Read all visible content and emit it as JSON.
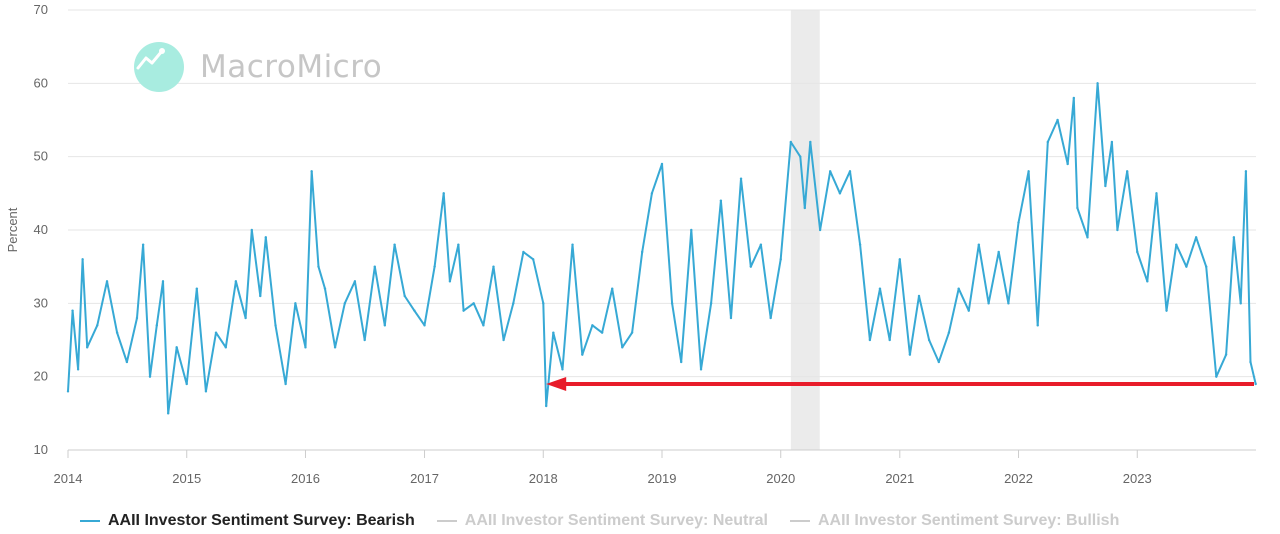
{
  "watermark": {
    "brand": "MacroMicro"
  },
  "colors": {
    "bearish": "#37a9d5",
    "inactive": "#cccccc",
    "arrow": "#e81c2a",
    "recession_band": "#ebebeb",
    "grid": "#e6e6e6"
  },
  "legend": [
    {
      "name": "AAII Investor Sentiment Survey: Bearish",
      "active": true
    },
    {
      "name": "AAII Investor Sentiment Survey: Neutral",
      "active": false
    },
    {
      "name": "AAII Investor Sentiment Survey: Bullish",
      "active": false
    }
  ],
  "chart_data": {
    "type": "line",
    "title": "",
    "ylabel": "Percent",
    "xlabel": "",
    "ylim": [
      10,
      70
    ],
    "yticks": [
      10,
      20,
      30,
      40,
      50,
      60,
      70
    ],
    "xlim": [
      "2014-01-01",
      "2024-01-01"
    ],
    "xticks": [
      "2014",
      "2015",
      "2016",
      "2017",
      "2018",
      "2019",
      "2020",
      "2021",
      "2022",
      "2023"
    ],
    "grid": "horizontal",
    "legend_position": "bottom",
    "shaded_period": {
      "start": "2020-02-01",
      "end": "2020-04-30"
    },
    "annotation": {
      "type": "arrow",
      "from": "2023-12-31",
      "to": "2018-01-10",
      "y": 19
    },
    "series": [
      {
        "name": "AAII Investor Sentiment Survey: Bearish",
        "x": [
          "2014-01-01",
          "2014-01-15",
          "2014-02-01",
          "2014-02-15",
          "2014-03-01",
          "2014-04-01",
          "2014-05-01",
          "2014-06-01",
          "2014-07-01",
          "2014-08-01",
          "2014-08-20",
          "2014-09-10",
          "2014-10-01",
          "2014-10-20",
          "2014-11-05",
          "2014-12-01",
          "2015-01-01",
          "2015-02-01",
          "2015-03-01",
          "2015-04-01",
          "2015-05-01",
          "2015-06-01",
          "2015-07-01",
          "2015-07-20",
          "2015-08-15",
          "2015-09-01",
          "2015-10-01",
          "2015-11-01",
          "2015-12-01",
          "2016-01-01",
          "2016-01-20",
          "2016-02-10",
          "2016-03-01",
          "2016-04-01",
          "2016-05-01",
          "2016-06-01",
          "2016-07-01",
          "2016-08-01",
          "2016-09-01",
          "2016-10-01",
          "2016-11-01",
          "2016-12-01",
          "2017-01-01",
          "2017-02-01",
          "2017-03-01",
          "2017-03-20",
          "2017-04-15",
          "2017-05-01",
          "2017-06-01",
          "2017-07-01",
          "2017-08-01",
          "2017-09-01",
          "2017-10-01",
          "2017-11-01",
          "2017-12-01",
          "2018-01-01",
          "2018-01-10",
          "2018-02-01",
          "2018-03-01",
          "2018-04-01",
          "2018-05-01",
          "2018-06-01",
          "2018-07-01",
          "2018-08-01",
          "2018-09-01",
          "2018-10-01",
          "2018-11-01",
          "2018-12-01",
          "2019-01-01",
          "2019-02-01",
          "2019-03-01",
          "2019-04-01",
          "2019-05-01",
          "2019-06-01",
          "2019-07-01",
          "2019-08-01",
          "2019-09-01",
          "2019-10-01",
          "2019-11-01",
          "2019-12-01",
          "2020-01-01",
          "2020-02-01",
          "2020-03-01",
          "2020-03-15",
          "2020-04-01",
          "2020-05-01",
          "2020-06-01",
          "2020-07-01",
          "2020-08-01",
          "2020-09-01",
          "2020-10-01",
          "2020-11-01",
          "2020-12-01",
          "2021-01-01",
          "2021-02-01",
          "2021-03-01",
          "2021-04-01",
          "2021-05-01",
          "2021-06-01",
          "2021-07-01",
          "2021-08-01",
          "2021-09-01",
          "2021-10-01",
          "2021-11-01",
          "2021-12-01",
          "2022-01-01",
          "2022-02-01",
          "2022-03-01",
          "2022-04-01",
          "2022-05-01",
          "2022-06-01",
          "2022-06-20",
          "2022-07-01",
          "2022-08-01",
          "2022-09-01",
          "2022-09-25",
          "2022-10-15",
          "2022-11-01",
          "2022-12-01",
          "2023-01-01",
          "2023-02-01",
          "2023-03-01",
          "2023-04-01",
          "2023-05-01",
          "2023-06-01",
          "2023-07-01",
          "2023-08-01",
          "2023-09-01",
          "2023-10-01",
          "2023-10-25",
          "2023-11-15",
          "2023-12-01",
          "2023-12-15",
          "2023-12-31"
        ],
        "values": [
          18,
          29,
          21,
          36,
          24,
          27,
          33,
          26,
          22,
          28,
          38,
          20,
          27,
          33,
          15,
          24,
          19,
          32,
          18,
          26,
          24,
          33,
          28,
          40,
          31,
          39,
          27,
          19,
          30,
          24,
          48,
          35,
          32,
          24,
          30,
          33,
          25,
          35,
          27,
          38,
          31,
          29,
          27,
          35,
          45,
          33,
          38,
          29,
          30,
          27,
          35,
          25,
          30,
          37,
          36,
          30,
          16,
          26,
          21,
          38,
          23,
          27,
          26,
          32,
          24,
          26,
          37,
          45,
          49,
          30,
          22,
          40,
          21,
          30,
          44,
          28,
          47,
          35,
          38,
          28,
          36,
          52,
          50,
          43,
          52,
          40,
          48,
          45,
          48,
          38,
          25,
          32,
          25,
          36,
          23,
          31,
          25,
          22,
          26,
          32,
          29,
          38,
          30,
          37,
          30,
          41,
          48,
          27,
          52,
          55,
          49,
          58,
          43,
          39,
          60,
          46,
          52,
          40,
          48,
          37,
          33,
          45,
          29,
          38,
          35,
          39,
          35,
          20,
          23,
          39,
          30,
          48,
          22,
          19
        ]
      }
    ]
  }
}
